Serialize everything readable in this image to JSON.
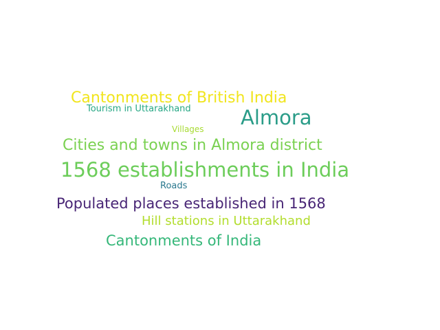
{
  "word_cloud": {
    "words": [
      {
        "text": "Cantonments of British India",
        "color": "#f1e51d"
      },
      {
        "text": "Tourism in Uttarakhand",
        "color": "#26a784"
      },
      {
        "text": "Almora",
        "color": "#2a9c88"
      },
      {
        "text": "Villages",
        "color": "#a8db34"
      },
      {
        "text": "Cities and towns in Almora district",
        "color": "#7ad151"
      },
      {
        "text": "1568 establishments in India",
        "color": "#6ccd5a"
      },
      {
        "text": "Roads",
        "color": "#2a788e"
      },
      {
        "text": "Populated places established in 1568",
        "color": "#482575"
      },
      {
        "text": "Hill stations in Uttarakhand",
        "color": "#b2dd2d"
      },
      {
        "text": "Cantonments of India",
        "color": "#35b779"
      }
    ]
  }
}
